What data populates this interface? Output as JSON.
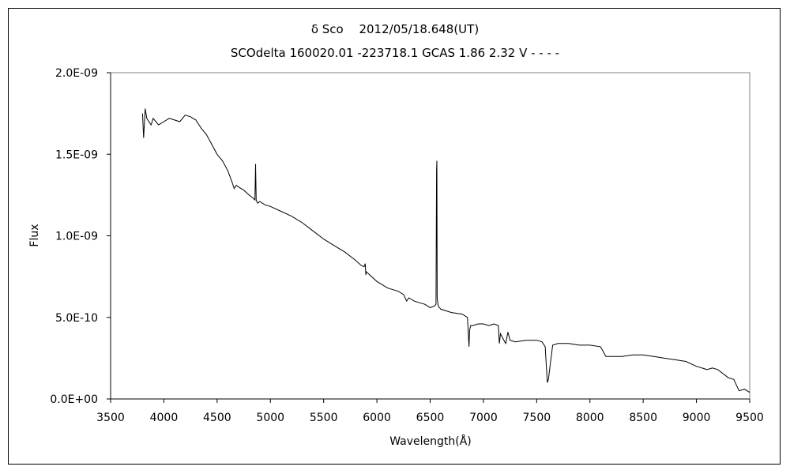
{
  "chart_data": {
    "type": "line",
    "title": "δ Sco　 2012/05/18.648(UT)",
    "subtitle": "SCOdelta 160020.01 -223718.1 GCAS 1.86 2.32 V - - - -",
    "xlabel": "Wavelength(Å)",
    "ylabel": "Flux",
    "xlim": [
      3500,
      9500
    ],
    "ylim": [
      0,
      2e-09
    ],
    "x_ticks": [
      3500,
      4000,
      4500,
      5000,
      5500,
      6000,
      6500,
      7000,
      7500,
      8000,
      8500,
      9000,
      9500
    ],
    "x_tick_labels": [
      "3500",
      "4000",
      "4500",
      "5000",
      "5500",
      "6000",
      "6500",
      "7000",
      "7500",
      "8000",
      "8500",
      "9000",
      "9500"
    ],
    "y_ticks": [
      0,
      5e-10,
      1e-09,
      1.5e-09,
      2e-09
    ],
    "y_tick_labels": [
      "0.0E+00",
      "5.0E-10",
      "1.0E-09",
      "1.5E-09",
      "2.0E-09"
    ],
    "grid": false,
    "legend": "none",
    "line_color": "#000000",
    "series": [
      {
        "x": [
          3800,
          3810,
          3825,
          3840,
          3860,
          3880,
          3900,
          3950,
          4000,
          4050,
          4100,
          4150,
          4200,
          4250,
          4300,
          4350,
          4400,
          4450,
          4500,
          4550,
          4600,
          4640,
          4660,
          4680,
          4700,
          4750,
          4800,
          4840,
          4855,
          4861,
          4867,
          4880,
          4900,
          4950,
          5000,
          5100,
          5200,
          5300,
          5400,
          5500,
          5600,
          5700,
          5800,
          5850,
          5880,
          5890,
          5896,
          5900,
          5950,
          6000,
          6100,
          6200,
          6250,
          6280,
          6300,
          6350,
          6400,
          6450,
          6500,
          6540,
          6555,
          6560,
          6563,
          6566,
          6575,
          6600,
          6700,
          6800,
          6850,
          6865,
          6870,
          6880,
          6900,
          6950,
          7000,
          7050,
          7100,
          7140,
          7150,
          7160,
          7200,
          7210,
          7230,
          7250,
          7300,
          7400,
          7500,
          7550,
          7580,
          7600,
          7610,
          7625,
          7650,
          7700,
          7800,
          7900,
          8000,
          8100,
          8150,
          8200,
          8300,
          8400,
          8500,
          8600,
          8700,
          8800,
          8900,
          9000,
          9100,
          9150,
          9200,
          9300,
          9350,
          9400,
          9450,
          9500
        ],
        "y": [
          1.75e-09,
          1.6e-09,
          1.78e-09,
          1.72e-09,
          1.7e-09,
          1.68e-09,
          1.72e-09,
          1.68e-09,
          1.7e-09,
          1.72e-09,
          1.71e-09,
          1.7e-09,
          1.74e-09,
          1.73e-09,
          1.71e-09,
          1.66e-09,
          1.62e-09,
          1.56e-09,
          1.5e-09,
          1.46e-09,
          1.4e-09,
          1.33e-09,
          1.29e-09,
          1.31e-09,
          1.3e-09,
          1.28e-09,
          1.25e-09,
          1.23e-09,
          1.22e-09,
          1.44e-09,
          1.22e-09,
          1.2e-09,
          1.21e-09,
          1.19e-09,
          1.18e-09,
          1.15e-09,
          1.12e-09,
          1.08e-09,
          1.03e-09,
          9.8e-10,
          9.4e-10,
          9e-10,
          8.5e-10,
          8.2e-10,
          8.1e-10,
          8.3e-10,
          7.6e-10,
          7.8e-10,
          7.5e-10,
          7.2e-10,
          6.8e-10,
          6.6e-10,
          6.4e-10,
          6e-10,
          6.2e-10,
          6e-10,
          5.9e-10,
          5.8e-10,
          5.6e-10,
          5.7e-10,
          5.8e-10,
          1.4e-09,
          1.46e-09,
          6.2e-10,
          5.7e-10,
          5.5e-10,
          5.3e-10,
          5.2e-10,
          5e-10,
          3.2e-10,
          4.2e-10,
          4.5e-10,
          4.5e-10,
          4.6e-10,
          4.6e-10,
          4.5e-10,
          4.6e-10,
          4.5e-10,
          3.4e-10,
          4e-10,
          3.5e-10,
          3.4e-10,
          4.1e-10,
          3.6e-10,
          3.5e-10,
          3.6e-10,
          3.6e-10,
          3.5e-10,
          3.2e-10,
          1e-10,
          1.2e-10,
          2e-10,
          3.3e-10,
          3.4e-10,
          3.4e-10,
          3.3e-10,
          3.3e-10,
          3.2e-10,
          2.6e-10,
          2.6e-10,
          2.6e-10,
          2.7e-10,
          2.7e-10,
          2.6e-10,
          2.5e-10,
          2.4e-10,
          2.3e-10,
          2e-10,
          1.8e-10,
          1.9e-10,
          1.8e-10,
          1.3e-10,
          1.2e-10,
          5e-11,
          6e-11,
          4e-11
        ]
      }
    ]
  }
}
